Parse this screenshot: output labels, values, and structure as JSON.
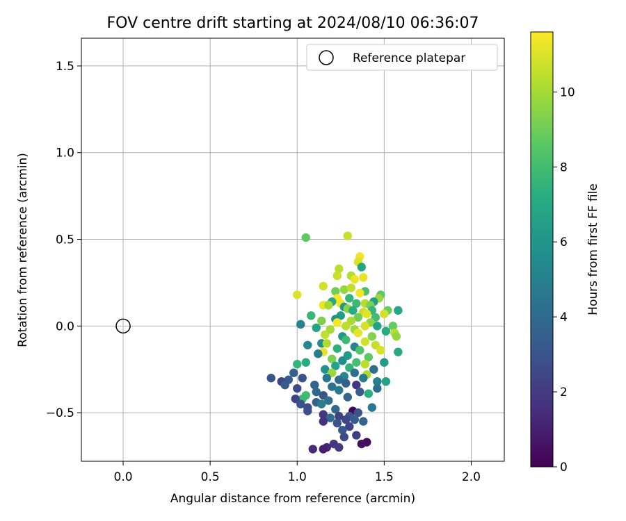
{
  "chart_data": {
    "type": "scatter",
    "title": "FOV centre drift starting at 2024/08/10 06:36:07",
    "xlabel": "Angular distance from reference (arcmin)",
    "ylabel": "Rotation from reference (arcmin)",
    "xlim": [
      -0.24,
      2.19
    ],
    "ylim": [
      -0.78,
      1.66
    ],
    "xticks": [
      0.0,
      0.5,
      1.0,
      1.5,
      2.0
    ],
    "xtick_labels": [
      "0.0",
      "0.5",
      "1.0",
      "1.5",
      "2.0"
    ],
    "yticks": [
      -0.5,
      0.0,
      0.5,
      1.0,
      1.5
    ],
    "ytick_labels": [
      "−0.5",
      "0.0",
      "0.5",
      "1.0",
      "1.5"
    ],
    "grid": true,
    "legend": {
      "placement": "top-right",
      "entries": [
        "Reference platepar"
      ]
    },
    "reference_point": {
      "x": 0.0,
      "y": 0.0
    },
    "colorbar": {
      "label": "Hours from first FF file",
      "colormap": "viridis",
      "range": [
        0,
        11.6
      ],
      "ticks": [
        0,
        2,
        4,
        6,
        8,
        10
      ],
      "tick_labels": [
        "0",
        "2",
        "4",
        "6",
        "8",
        "10"
      ]
    },
    "series": [
      {
        "points": [
          {
            "x": 1.05,
            "y": 0.51,
            "h": 8.7
          },
          {
            "x": 1.29,
            "y": 0.52,
            "h": 10.6
          },
          {
            "x": 1.36,
            "y": 0.4,
            "h": 11.4
          },
          {
            "x": 1.35,
            "y": 0.37,
            "h": 11.0
          },
          {
            "x": 1.37,
            "y": 0.34,
            "h": 6.8
          },
          {
            "x": 1.24,
            "y": 0.33,
            "h": 10.4
          },
          {
            "x": 1.31,
            "y": 0.29,
            "h": 10.2
          },
          {
            "x": 1.23,
            "y": 0.29,
            "h": 10.7
          },
          {
            "x": 1.38,
            "y": 0.28,
            "h": 11.2
          },
          {
            "x": 1.33,
            "y": 0.27,
            "h": 11.3
          },
          {
            "x": 1.15,
            "y": 0.23,
            "h": 10.8
          },
          {
            "x": 1.27,
            "y": 0.21,
            "h": 9.7
          },
          {
            "x": 1.22,
            "y": 0.2,
            "h": 9.0
          },
          {
            "x": 1.31,
            "y": 0.22,
            "h": 10.5
          },
          {
            "x": 1.39,
            "y": 0.2,
            "h": 8.2
          },
          {
            "x": 1.36,
            "y": 0.19,
            "h": 11.4
          },
          {
            "x": 1.0,
            "y": 0.18,
            "h": 11.0
          },
          {
            "x": 1.48,
            "y": 0.18,
            "h": 8.6
          },
          {
            "x": 1.47,
            "y": 0.16,
            "h": 9.8
          },
          {
            "x": 1.23,
            "y": 0.16,
            "h": 11.5
          },
          {
            "x": 1.3,
            "y": 0.16,
            "h": 7.5
          },
          {
            "x": 1.2,
            "y": 0.14,
            "h": 7.0
          },
          {
            "x": 1.44,
            "y": 0.14,
            "h": 6.5
          },
          {
            "x": 1.25,
            "y": 0.13,
            "h": 11.4
          },
          {
            "x": 1.34,
            "y": 0.13,
            "h": 7.8
          },
          {
            "x": 1.39,
            "y": 0.13,
            "h": 10.3
          },
          {
            "x": 1.42,
            "y": 0.12,
            "h": 9.2
          },
          {
            "x": 1.15,
            "y": 0.12,
            "h": 11.3
          },
          {
            "x": 1.18,
            "y": 0.12,
            "h": 10.0
          },
          {
            "x": 1.27,
            "y": 0.11,
            "h": 6.2
          },
          {
            "x": 1.29,
            "y": 0.1,
            "h": 9.5
          },
          {
            "x": 1.32,
            "y": 0.09,
            "h": 7.2
          },
          {
            "x": 1.43,
            "y": 0.09,
            "h": 7.6
          },
          {
            "x": 1.52,
            "y": 0.09,
            "h": 8.9
          },
          {
            "x": 1.58,
            "y": 0.09,
            "h": 6.9
          },
          {
            "x": 1.38,
            "y": 0.08,
            "h": 10.6
          },
          {
            "x": 1.4,
            "y": 0.07,
            "h": 11.1
          },
          {
            "x": 1.5,
            "y": 0.07,
            "h": 10.8
          },
          {
            "x": 1.25,
            "y": 0.06,
            "h": 6.4
          },
          {
            "x": 1.08,
            "y": 0.06,
            "h": 7.7
          },
          {
            "x": 1.35,
            "y": 0.05,
            "h": 9.0
          },
          {
            "x": 1.45,
            "y": 0.05,
            "h": 8.0
          },
          {
            "x": 1.22,
            "y": 0.04,
            "h": 5.9
          },
          {
            "x": 1.14,
            "y": 0.03,
            "h": 9.3
          },
          {
            "x": 1.31,
            "y": 0.03,
            "h": 10.1
          },
          {
            "x": 1.23,
            "y": 0.02,
            "h": 11.5
          },
          {
            "x": 1.42,
            "y": 0.02,
            "h": 9.6
          },
          {
            "x": 1.55,
            "y": 0.0,
            "h": 8.8
          },
          {
            "x": 1.02,
            "y": 0.01,
            "h": 5.1
          },
          {
            "x": 1.28,
            "y": 0.0,
            "h": 10.4
          },
          {
            "x": 1.39,
            "y": 0.0,
            "h": 10.9
          },
          {
            "x": 1.46,
            "y": 0.0,
            "h": 6.6
          },
          {
            "x": 1.11,
            "y": -0.01,
            "h": 6.8
          },
          {
            "x": 1.19,
            "y": -0.02,
            "h": 10.0
          },
          {
            "x": 1.33,
            "y": -0.02,
            "h": 9.9
          },
          {
            "x": 1.51,
            "y": -0.03,
            "h": 7.1
          },
          {
            "x": 1.35,
            "y": -0.04,
            "h": 11.2
          },
          {
            "x": 1.56,
            "y": -0.04,
            "h": 10.3
          },
          {
            "x": 1.16,
            "y": -0.05,
            "h": 10.5
          },
          {
            "x": 1.26,
            "y": -0.06,
            "h": 6.1
          },
          {
            "x": 1.43,
            "y": -0.06,
            "h": 9.4
          },
          {
            "x": 1.57,
            "y": -0.06,
            "h": 9.7
          },
          {
            "x": 1.28,
            "y": -0.08,
            "h": 7.9
          },
          {
            "x": 1.39,
            "y": -0.09,
            "h": 10.8
          },
          {
            "x": 1.14,
            "y": -0.1,
            "h": 5.6
          },
          {
            "x": 1.17,
            "y": -0.1,
            "h": 10.2
          },
          {
            "x": 1.06,
            "y": -0.11,
            "h": 5.3
          },
          {
            "x": 1.45,
            "y": -0.11,
            "h": 10.6
          },
          {
            "x": 1.33,
            "y": -0.12,
            "h": 5.2
          },
          {
            "x": 1.23,
            "y": -0.13,
            "h": 7.4
          },
          {
            "x": 1.36,
            "y": -0.14,
            "h": 8.4
          },
          {
            "x": 1.48,
            "y": -0.14,
            "h": 10.9
          },
          {
            "x": 1.58,
            "y": -0.15,
            "h": 7.0
          },
          {
            "x": 1.15,
            "y": -0.15,
            "h": 11.2
          },
          {
            "x": 1.12,
            "y": -0.16,
            "h": 4.8
          },
          {
            "x": 1.29,
            "y": -0.17,
            "h": 6.3
          },
          {
            "x": 1.41,
            "y": -0.18,
            "h": 8.7
          },
          {
            "x": 1.2,
            "y": -0.19,
            "h": 9.2
          },
          {
            "x": 1.26,
            "y": -0.2,
            "h": 5.7
          },
          {
            "x": 1.34,
            "y": -0.21,
            "h": 8.1
          },
          {
            "x": 1.05,
            "y": -0.21,
            "h": 7.2
          },
          {
            "x": 1.5,
            "y": -0.21,
            "h": 6.3
          },
          {
            "x": 1.0,
            "y": -0.22,
            "h": 7.6
          },
          {
            "x": 1.39,
            "y": -0.22,
            "h": 10.4
          },
          {
            "x": 1.22,
            "y": -0.23,
            "h": 6.7
          },
          {
            "x": 1.3,
            "y": -0.24,
            "h": 7.5
          },
          {
            "x": 1.16,
            "y": -0.25,
            "h": 5.9
          },
          {
            "x": 1.44,
            "y": -0.25,
            "h": 4.1
          },
          {
            "x": 0.98,
            "y": -0.27,
            "h": 3.5
          },
          {
            "x": 1.2,
            "y": -0.27,
            "h": 9.8
          },
          {
            "x": 1.33,
            "y": -0.27,
            "h": 4.2
          },
          {
            "x": 1.4,
            "y": -0.28,
            "h": 10.1
          },
          {
            "x": 1.27,
            "y": -0.29,
            "h": 5.2
          },
          {
            "x": 0.85,
            "y": -0.3,
            "h": 3.0
          },
          {
            "x": 1.03,
            "y": -0.3,
            "h": 2.9
          },
          {
            "x": 1.17,
            "y": -0.3,
            "h": 4.5
          },
          {
            "x": 1.38,
            "y": -0.3,
            "h": 4.8
          },
          {
            "x": 0.95,
            "y": -0.31,
            "h": 3.2
          },
          {
            "x": 1.24,
            "y": -0.31,
            "h": 4.0
          },
          {
            "x": 0.91,
            "y": -0.32,
            "h": 2.4
          },
          {
            "x": 1.46,
            "y": -0.32,
            "h": 5.0
          },
          {
            "x": 1.51,
            "y": -0.32,
            "h": 6.6
          },
          {
            "x": 1.28,
            "y": -0.33,
            "h": 3.6
          },
          {
            "x": 0.93,
            "y": -0.34,
            "h": 3.4
          },
          {
            "x": 1.34,
            "y": -0.34,
            "h": 1.9
          },
          {
            "x": 1.1,
            "y": -0.34,
            "h": 3.7
          },
          {
            "x": 1.2,
            "y": -0.35,
            "h": 4.4
          },
          {
            "x": 1.46,
            "y": -0.36,
            "h": 4.2
          },
          {
            "x": 1.0,
            "y": -0.36,
            "h": 2.6
          },
          {
            "x": 1.24,
            "y": -0.37,
            "h": 4.6
          },
          {
            "x": 1.11,
            "y": -0.38,
            "h": 3.9
          },
          {
            "x": 1.36,
            "y": -0.38,
            "h": 3.3
          },
          {
            "x": 1.41,
            "y": -0.39,
            "h": 7.3
          },
          {
            "x": 1.05,
            "y": -0.4,
            "h": 8.0
          },
          {
            "x": 1.15,
            "y": -0.4,
            "h": 3.1
          },
          {
            "x": 1.29,
            "y": -0.41,
            "h": 3.8
          },
          {
            "x": 1.03,
            "y": -0.42,
            "h": 7.8
          },
          {
            "x": 0.99,
            "y": -0.42,
            "h": 2.3
          },
          {
            "x": 1.18,
            "y": -0.43,
            "h": 4.3
          },
          {
            "x": 1.11,
            "y": -0.44,
            "h": 3.5
          },
          {
            "x": 1.14,
            "y": -0.45,
            "h": 4.9
          },
          {
            "x": 1.02,
            "y": -0.45,
            "h": 3.0
          },
          {
            "x": 1.06,
            "y": -0.47,
            "h": 2.7
          },
          {
            "x": 1.43,
            "y": -0.47,
            "h": 4.7
          },
          {
            "x": 1.22,
            "y": -0.48,
            "h": 3.9
          },
          {
            "x": 1.06,
            "y": -0.49,
            "h": 2.8
          },
          {
            "x": 1.32,
            "y": -0.49,
            "h": 0.2
          },
          {
            "x": 1.35,
            "y": -0.5,
            "h": 3.0
          },
          {
            "x": 1.15,
            "y": -0.51,
            "h": 1.8
          },
          {
            "x": 1.24,
            "y": -0.52,
            "h": 2.2
          },
          {
            "x": 1.3,
            "y": -0.52,
            "h": 3.1
          },
          {
            "x": 1.19,
            "y": -0.53,
            "h": 4.0
          },
          {
            "x": 1.28,
            "y": -0.54,
            "h": 2.5
          },
          {
            "x": 1.33,
            "y": -0.54,
            "h": 3.4
          },
          {
            "x": 1.15,
            "y": -0.55,
            "h": 1.6
          },
          {
            "x": 1.38,
            "y": -0.55,
            "h": 3.7
          },
          {
            "x": 1.23,
            "y": -0.56,
            "h": 2.9
          },
          {
            "x": 1.3,
            "y": -0.58,
            "h": 2.3
          },
          {
            "x": 1.26,
            "y": -0.6,
            "h": 3.2
          },
          {
            "x": 1.34,
            "y": -0.63,
            "h": 2.1
          },
          {
            "x": 1.27,
            "y": -0.64,
            "h": 2.6
          },
          {
            "x": 1.4,
            "y": -0.67,
            "h": 0.3
          },
          {
            "x": 1.37,
            "y": -0.68,
            "h": 0.5
          },
          {
            "x": 1.21,
            "y": -0.68,
            "h": 1.9
          },
          {
            "x": 1.24,
            "y": -0.7,
            "h": 2.0
          },
          {
            "x": 1.17,
            "y": -0.7,
            "h": 1.3
          },
          {
            "x": 1.15,
            "y": -0.71,
            "h": 1.0
          },
          {
            "x": 1.09,
            "y": -0.71,
            "h": 1.4
          }
        ]
      }
    ]
  }
}
